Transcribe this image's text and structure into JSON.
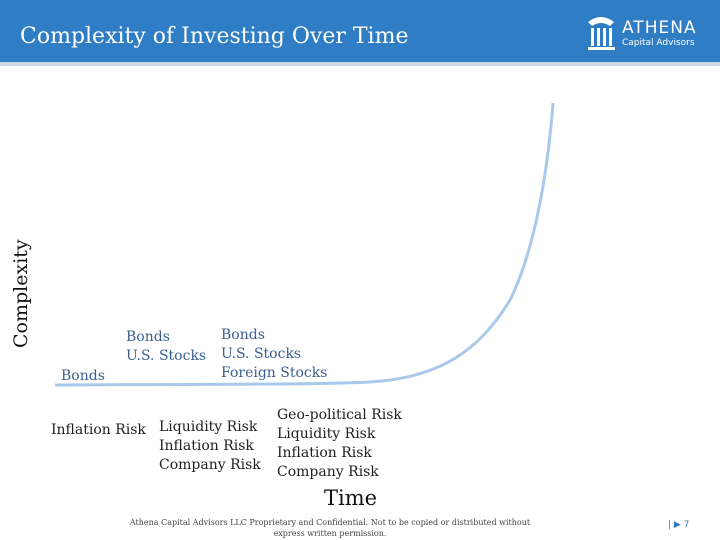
{
  "header": {
    "title": "Complexity of Investing Over Time",
    "background_color": "#2e7dc5"
  },
  "logo": {
    "name": "ATHENA",
    "subtitle": "Capital Advisors"
  },
  "chart": {
    "ylabel": "Complexity",
    "xlabel": "Time",
    "curve_color": "#a9c9ea",
    "stages": [
      {
        "assets": [
          "Bonds"
        ],
        "risks": [
          "Inflation Risk"
        ]
      },
      {
        "assets": [
          "Bonds",
          "U.S. Stocks"
        ],
        "risks": [
          "Liquidity Risk",
          "Inflation Risk",
          "Company Risk"
        ]
      },
      {
        "assets": [
          "Bonds",
          "U.S. Stocks",
          "Foreign Stocks"
        ],
        "risks": [
          "Geo-political Risk",
          "Liquidity Risk",
          "Inflation Risk",
          "Company Risk"
        ]
      }
    ]
  },
  "footer": {
    "line1": "Athena Capital Advisors LLC Proprietary and Confidential. Not to be copied or distributed without",
    "line2": "express written permission.",
    "page_number": "| ▶ 7"
  }
}
